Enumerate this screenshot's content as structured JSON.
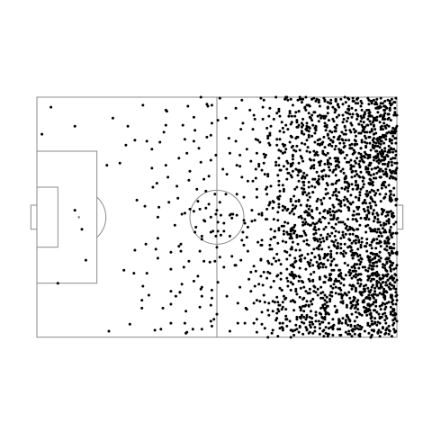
{
  "chart_data": {
    "type": "scatter",
    "title": "",
    "xlabel": "",
    "ylabel": "",
    "xlim": [
      0,
      120
    ],
    "ylim": [
      0,
      80
    ],
    "grid": false,
    "legend": "none",
    "colors": {
      "points": "#000000",
      "pitch_lines": "#8a8a8a",
      "background": "#ffffff"
    },
    "pitch": {
      "length": 120,
      "width": 80,
      "penalty_area_depth": 20,
      "penalty_area_width": 44,
      "six_yard_depth": 7,
      "six_yard_width": 20,
      "goal_depth": 2,
      "goal_width": 8,
      "center_circle_radius": 9,
      "penalty_spot": 14
    },
    "density_grid": {
      "x_step": 5,
      "y_step": 5,
      "x_bin_starts": [
        0,
        5,
        10,
        15,
        20,
        25,
        30,
        35,
        40,
        45,
        50,
        55,
        60,
        65,
        70,
        75,
        80,
        85,
        90,
        95,
        100,
        105,
        110,
        115
      ],
      "y_bin_starts": [
        0,
        5,
        10,
        15,
        20,
        25,
        30,
        35,
        40,
        45,
        50,
        55,
        60,
        65,
        70,
        75
      ],
      "counts": [
        [
          1,
          0,
          0,
          0,
          0,
          0,
          0,
          1,
          2,
          0,
          2,
          3,
          1,
          2,
          2,
          4,
          9,
          14,
          14,
          18,
          14,
          16,
          24,
          24
        ],
        [
          0,
          0,
          1,
          0,
          0,
          1,
          1,
          0,
          1,
          1,
          1,
          1,
          2,
          1,
          2,
          5,
          8,
          11,
          12,
          14,
          14,
          18,
          24,
          22
        ],
        [
          1,
          0,
          0,
          0,
          0,
          0,
          1,
          1,
          1,
          1,
          2,
          2,
          1,
          2,
          3,
          5,
          9,
          12,
          12,
          15,
          15,
          18,
          26,
          26
        ],
        [
          0,
          0,
          0,
          0,
          0,
          1,
          0,
          1,
          1,
          1,
          1,
          1,
          1,
          1,
          3,
          4,
          9,
          11,
          13,
          16,
          16,
          19,
          26,
          27
        ],
        [
          0,
          0,
          0,
          0,
          1,
          1,
          0,
          1,
          1,
          1,
          2,
          1,
          1,
          2,
          4,
          5,
          10,
          12,
          13,
          16,
          16,
          20,
          28,
          28
        ],
        [
          0,
          0,
          0,
          0,
          0,
          0,
          0,
          1,
          1,
          1,
          1,
          2,
          1,
          1,
          3,
          4,
          9,
          12,
          12,
          14,
          14,
          16,
          22,
          22
        ],
        [
          0,
          0,
          0,
          0,
          0,
          0,
          1,
          1,
          1,
          1,
          2,
          2,
          2,
          2,
          2,
          5,
          9,
          12,
          11,
          12,
          13,
          14,
          17,
          18
        ],
        [
          0,
          0,
          1,
          0,
          0,
          0,
          0,
          1,
          1,
          2,
          3,
          3,
          4,
          2,
          3,
          6,
          10,
          14,
          14,
          15,
          15,
          15,
          18,
          18
        ],
        [
          0,
          0,
          1,
          0,
          0,
          0,
          0,
          0,
          1,
          1,
          2,
          4,
          4,
          4,
          3,
          5,
          11,
          14,
          15,
          15,
          14,
          16,
          19,
          18
        ],
        [
          0,
          0,
          0,
          0,
          0,
          0,
          0,
          1,
          1,
          2,
          2,
          2,
          2,
          3,
          3,
          5,
          10,
          12,
          14,
          14,
          14,
          14,
          17,
          17
        ],
        [
          0,
          0,
          0,
          1,
          0,
          0,
          1,
          1,
          2,
          1,
          2,
          3,
          1,
          2,
          3,
          5,
          9,
          12,
          13,
          15,
          14,
          17,
          24,
          23
        ],
        [
          0,
          0,
          0,
          0,
          0,
          1,
          1,
          1,
          1,
          1,
          1,
          1,
          1,
          2,
          4,
          5,
          9,
          12,
          13,
          15,
          15,
          18,
          26,
          26
        ],
        [
          0,
          1,
          0,
          0,
          0,
          0,
          0,
          1,
          1,
          2,
          2,
          2,
          1,
          1,
          4,
          4,
          9,
          12,
          12,
          16,
          15,
          20,
          26,
          28
        ],
        [
          0,
          0,
          0,
          0,
          0,
          0,
          1,
          1,
          1,
          2,
          1,
          2,
          1,
          1,
          3,
          5,
          10,
          11,
          12,
          16,
          16,
          19,
          27,
          27
        ],
        [
          0,
          0,
          0,
          0,
          0,
          0,
          0,
          1,
          1,
          1,
          1,
          2,
          1,
          1,
          3,
          5,
          10,
          12,
          13,
          15,
          15,
          17,
          24,
          22
        ],
        [
          0,
          0,
          0,
          0,
          1,
          0,
          1,
          1,
          2,
          2,
          2,
          2,
          1,
          2,
          3,
          4,
          10,
          14,
          14,
          17,
          16,
          18,
          22,
          18
        ]
      ]
    }
  }
}
